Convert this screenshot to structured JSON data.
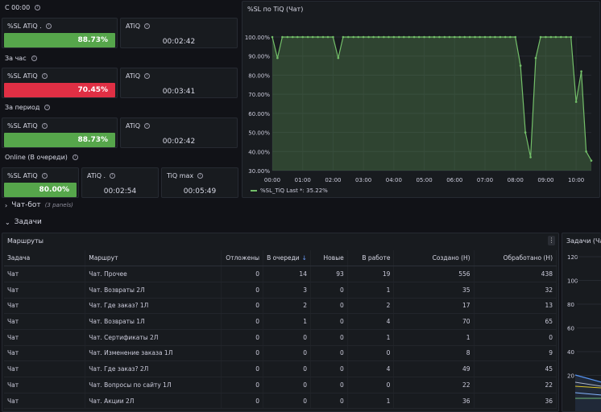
{
  "sections": {
    "s0": "С 00:00",
    "s1": "За час",
    "s2": "За период",
    "s3": "Online (В очереди)"
  },
  "stats": {
    "r0_sl_label": "%SL ATiQ .",
    "r0_sl_value": "88.73%",
    "r0_atiq_label": "ATiQ",
    "r0_atiq_value": "00:02:42",
    "r1_sl_label": "%SL ATiQ",
    "r1_sl_value": "70.45%",
    "r1_atiq_label": "ATiQ",
    "r1_atiq_value": "00:03:41",
    "r2_sl_label": "%SL ATiQ",
    "r2_sl_value": "88.73%",
    "r2_atiq_label": "ATiQ",
    "r2_atiq_value": "00:02:42",
    "r3_sl_label": "%SL ATiQ",
    "r3_sl_value": "80.00%",
    "r3_atiq_label": "ATiQ .",
    "r3_atiq_value": "00:02:54",
    "r3_tiq_label": "TiQ max",
    "r3_tiq_value": "00:05:49"
  },
  "rows": {
    "chatbot_label": "Чат-бот",
    "chatbot_sub": "(3 panels)",
    "tasks_label": "Задачи"
  },
  "chart_data": {
    "type": "line",
    "title": "%SL по TiQ (Чат)",
    "y_ticks": [
      "100.00%",
      "90.00%",
      "80.00%",
      "70.00%",
      "60.00%",
      "50.00%",
      "40.00%",
      "30.00%"
    ],
    "x_ticks": [
      "00:00",
      "01:00",
      "02:00",
      "03:00",
      "04:00",
      "05:00",
      "06:00",
      "07:00",
      "08:00",
      "09:00",
      "10:00"
    ],
    "ylim": [
      30,
      100
    ],
    "xlim": [
      0,
      10.5
    ],
    "series": [
      {
        "name": "%SL_TiQ",
        "legend_label": "%SL_TiQ  Last *: 35.22%",
        "color": "#73bf69",
        "x": [
          0,
          0.17,
          0.33,
          0.5,
          0.67,
          0.83,
          1,
          1.17,
          1.33,
          1.5,
          1.67,
          1.83,
          2,
          2.17,
          2.33,
          2.5,
          2.67,
          2.83,
          3,
          3.17,
          3.33,
          3.5,
          3.67,
          3.83,
          4,
          4.17,
          4.33,
          4.5,
          4.67,
          4.83,
          5,
          5.17,
          5.33,
          5.5,
          5.67,
          5.83,
          6,
          6.17,
          6.33,
          6.5,
          6.67,
          6.83,
          7,
          7.17,
          7.33,
          7.5,
          7.67,
          7.83,
          8,
          8.17,
          8.33,
          8.5,
          8.67,
          8.83,
          9,
          9.17,
          9.33,
          9.5,
          9.67,
          9.83,
          10,
          10.17,
          10.33,
          10.5
        ],
        "y": [
          100,
          89,
          100,
          100,
          100,
          100,
          100,
          100,
          100,
          100,
          100,
          100,
          100,
          89,
          100,
          100,
          100,
          100,
          100,
          100,
          100,
          100,
          100,
          100,
          100,
          100,
          100,
          100,
          100,
          100,
          100,
          100,
          100,
          100,
          100,
          100,
          100,
          100,
          100,
          100,
          100,
          100,
          100,
          100,
          100,
          100,
          100,
          100,
          100,
          85,
          50,
          37,
          89,
          100,
          100,
          100,
          100,
          100,
          100,
          100,
          66,
          82,
          40,
          35.22
        ]
      }
    ]
  },
  "routes": {
    "title": "Маршруты",
    "menu": "⋮",
    "sort_arrow": "↓",
    "columns": [
      "Задача",
      "Маршрут",
      "Отложены",
      "В очереди",
      "Новые",
      "В работе",
      "Создано (Н)",
      "Обработано (Н)"
    ],
    "rows": [
      [
        "Чат",
        "Чат. Прочее",
        "0",
        "14",
        "93",
        "19",
        "556",
        "438"
      ],
      [
        "Чат",
        "Чат. Возвраты 2Л",
        "0",
        "3",
        "0",
        "1",
        "35",
        "32"
      ],
      [
        "Чат",
        "Чат. Где заказ? 1Л",
        "0",
        "2",
        "0",
        "2",
        "17",
        "13"
      ],
      [
        "Чат",
        "Чат. Возвраты 1Л",
        "0",
        "1",
        "0",
        "4",
        "70",
        "65"
      ],
      [
        "Чат",
        "Чат. Сертификаты 2Л",
        "0",
        "0",
        "0",
        "1",
        "1",
        "0"
      ],
      [
        "Чат",
        "Чат. Изменение заказа 1Л",
        "0",
        "0",
        "0",
        "0",
        "8",
        "9"
      ],
      [
        "Чат",
        "Чат. Где заказ? 2Л",
        "0",
        "0",
        "0",
        "4",
        "49",
        "45"
      ],
      [
        "Чат",
        "Чат. Вопросы по сайту 1Л",
        "0",
        "0",
        "0",
        "0",
        "22",
        "22"
      ],
      [
        "Чат",
        "Чат. Акции 2Л",
        "0",
        "0",
        "0",
        "1",
        "36",
        "36"
      ]
    ]
  },
  "tasks_panel": {
    "title": "Задачи (Ча",
    "y_ticks": [
      "120",
      "100",
      "80",
      "60",
      "40",
      "20"
    ]
  }
}
